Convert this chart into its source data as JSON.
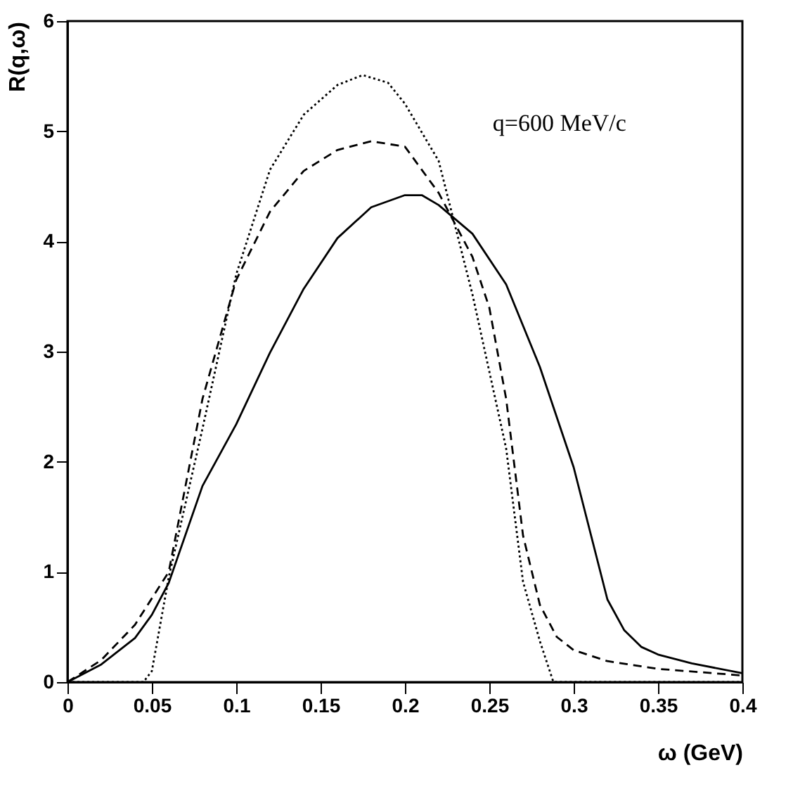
{
  "chart_data": {
    "type": "line",
    "xlabel": "ω (GeV)",
    "ylabel": "R(q,ω)",
    "annotations": [
      "q=600 MeV/c"
    ],
    "xlim": [
      0,
      0.4
    ],
    "ylim": [
      0,
      6
    ],
    "xticks": [
      0,
      0.05,
      0.1,
      0.15,
      0.2,
      0.25,
      0.3,
      0.35,
      0.4
    ],
    "yticks": [
      0,
      1,
      2,
      3,
      4,
      5,
      6
    ],
    "grid": false,
    "marker": "none",
    "series": [
      {
        "color": "#000000",
        "line_style": "solid",
        "x": [
          0,
          0.02,
          0.04,
          0.05,
          0.06,
          0.08,
          0.1,
          0.12,
          0.14,
          0.16,
          0.18,
          0.2,
          0.21,
          0.22,
          0.24,
          0.26,
          0.28,
          0.3,
          0.32,
          0.33,
          0.34,
          0.35,
          0.37,
          0.4
        ],
        "values": [
          0,
          0.16,
          0.4,
          0.61,
          0.9,
          1.78,
          2.34,
          2.99,
          3.57,
          4.03,
          4.31,
          4.42,
          4.42,
          4.33,
          4.07,
          3.61,
          2.86,
          1.95,
          0.75,
          0.47,
          0.32,
          0.25,
          0.17,
          0.08
        ]
      },
      {
        "color": "#000000",
        "line_style": "dashed",
        "x": [
          0,
          0.02,
          0.04,
          0.06,
          0.08,
          0.1,
          0.12,
          0.14,
          0.16,
          0.18,
          0.2,
          0.22,
          0.24,
          0.25,
          0.26,
          0.27,
          0.28,
          0.29,
          0.3,
          0.32,
          0.35,
          0.4
        ],
        "values": [
          0,
          0.2,
          0.52,
          1.0,
          2.57,
          3.65,
          4.27,
          4.64,
          4.83,
          4.91,
          4.86,
          4.44,
          3.86,
          3.4,
          2.57,
          1.33,
          0.7,
          0.41,
          0.29,
          0.19,
          0.12,
          0.06
        ]
      },
      {
        "color": "#000000",
        "line_style": "dotted",
        "x": [
          0,
          0.045,
          0.05,
          0.06,
          0.08,
          0.1,
          0.12,
          0.14,
          0.16,
          0.175,
          0.19,
          0.2,
          0.22,
          0.24,
          0.26,
          0.27,
          0.28,
          0.288,
          0.4
        ],
        "values": [
          0,
          0,
          0.1,
          0.95,
          2.3,
          3.7,
          4.65,
          5.15,
          5.42,
          5.51,
          5.44,
          5.25,
          4.73,
          3.52,
          2.12,
          0.91,
          0.37,
          0,
          0
        ]
      }
    ]
  }
}
